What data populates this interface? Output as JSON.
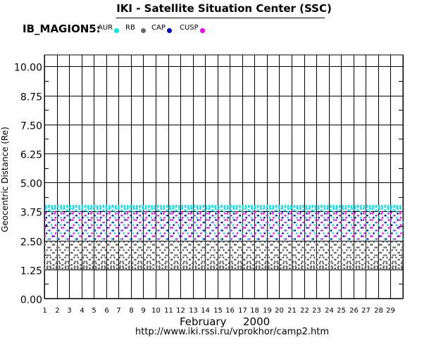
{
  "header": {
    "title": "IKI - Satellite Situation Center (SSC)",
    "satellite": "IB_MAGION5:"
  },
  "footer": {
    "month": "February",
    "year": "2000",
    "url": "http://www.iki.rssi.ru/vprokhor/camp2.htm"
  },
  "colors": {
    "AUR": "#00e5ee",
    "RB": "#666666",
    "CAP": "#0000cc",
    "CUSP": "#ee00ee",
    "grid": "#000000"
  },
  "chart_data": {
    "type": "scatter",
    "title": "IKI - Satellite Situation Center (SSC)",
    "ylabel": "Geocentric Distance (Re)",
    "xlabel": "February 2000",
    "ylim": [
      0,
      10.5
    ],
    "xlim": [
      1,
      30
    ],
    "grid": true,
    "legend_placement": "top-left",
    "y_ticks": [
      "0.00",
      "1.25",
      "2.50",
      "3.75",
      "5.00",
      "6.25",
      "7.50",
      "8.75",
      "10.00"
    ],
    "x_ticks": [
      "1",
      "2",
      "3",
      "4",
      "5",
      "6",
      "7",
      "8",
      "9",
      "10",
      "11",
      "12",
      "13",
      "14",
      "15",
      "16",
      "17",
      "18",
      "19",
      "20",
      "21",
      "22",
      "23",
      "24",
      "25",
      "26",
      "27",
      "28",
      "29"
    ],
    "orbit_period_days": 0.245,
    "perigee_re": 1.25,
    "apogee_re": 4.0,
    "series": [
      {
        "name": "AUR",
        "range": [
          1.25,
          4.0
        ]
      },
      {
        "name": "RB",
        "range": [
          1.25,
          2.5
        ]
      },
      {
        "name": "CAP",
        "range": [
          3.0,
          3.8
        ]
      },
      {
        "name": "CUSP",
        "range": [
          2.6,
          3.5
        ]
      }
    ]
  }
}
